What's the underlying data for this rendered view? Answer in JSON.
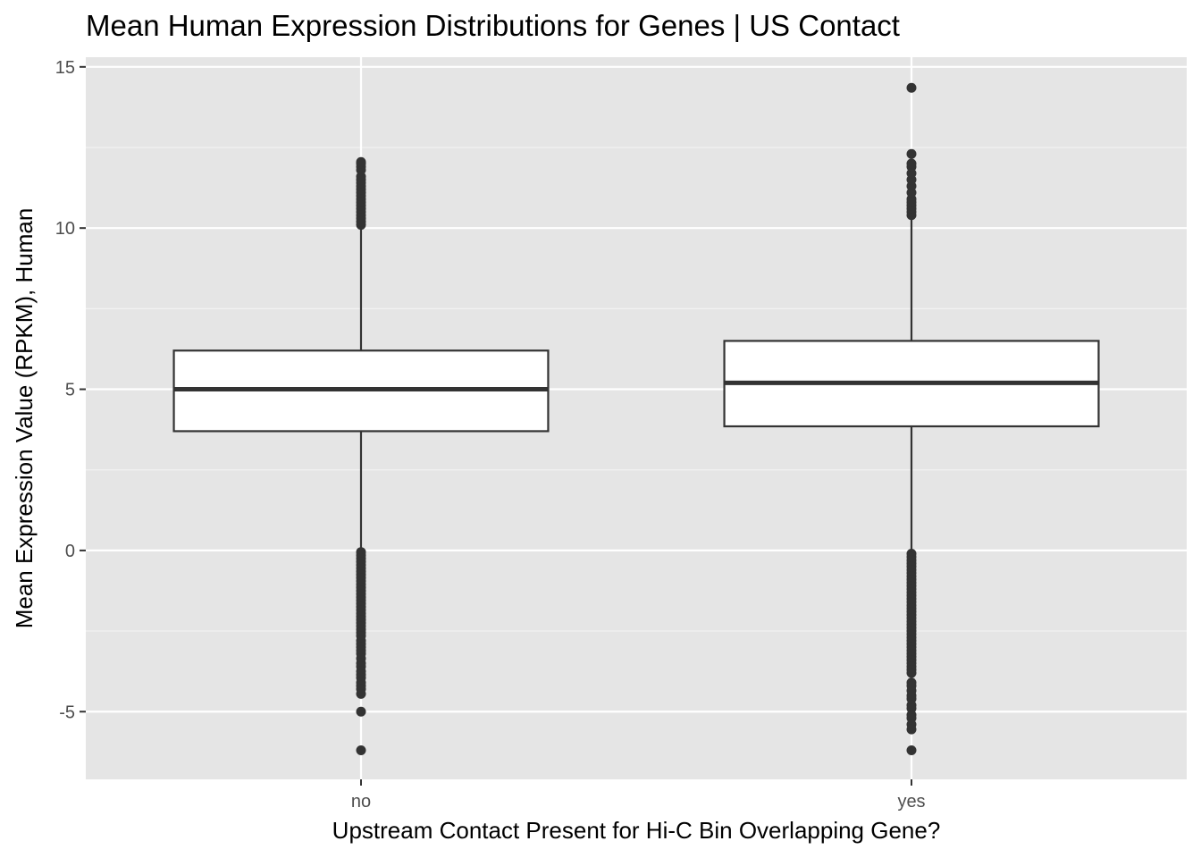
{
  "chart_data": {
    "type": "boxplot",
    "title": "Mean Human Expression Distributions for Genes | US Contact",
    "xlabel": "Upstream Contact Present for Hi-C Bin Overlapping Gene?",
    "ylabel": "Mean Expression Value (RPKM), Human",
    "categories": [
      "no",
      "yes"
    ],
    "ylim": [
      -7.1,
      15.3
    ],
    "yticks": [
      -5,
      0,
      5,
      10,
      15
    ],
    "ytick_labels": [
      "-5",
      "0",
      "5",
      "10",
      "15"
    ],
    "grid": true,
    "background": "#e5e5e5",
    "boxes": [
      {
        "category": "no",
        "q1": 3.7,
        "median": 5.0,
        "q3": 6.2,
        "whisker_low": 0.0,
        "whisker_high": 10.0,
        "outliers": [
          10.1,
          10.2,
          10.3,
          10.4,
          10.5,
          10.6,
          10.7,
          10.8,
          10.9,
          11.0,
          11.1,
          11.2,
          11.3,
          11.4,
          11.5,
          11.6,
          11.8,
          11.9,
          12.0,
          12.05,
          -0.05,
          -0.15,
          -0.25,
          -0.35,
          -0.45,
          -0.55,
          -0.65,
          -0.75,
          -0.85,
          -0.95,
          -1.05,
          -1.15,
          -1.25,
          -1.35,
          -1.45,
          -1.55,
          -1.65,
          -1.75,
          -1.85,
          -1.95,
          -2.05,
          -2.15,
          -2.25,
          -2.35,
          -2.45,
          -2.55,
          -2.65,
          -2.8,
          -2.9,
          -3.0,
          -3.1,
          -3.2,
          -3.35,
          -3.5,
          -3.6,
          -3.75,
          -3.85,
          -3.95,
          -4.1,
          -4.2,
          -4.3,
          -4.45,
          -5.0,
          -6.2
        ]
      },
      {
        "category": "yes",
        "q1": 3.85,
        "median": 5.2,
        "q3": 6.5,
        "whisker_low": 0.0,
        "whisker_high": 10.3,
        "outliers": [
          10.4,
          10.5,
          10.6,
          10.7,
          10.8,
          10.9,
          11.1,
          11.3,
          11.5,
          11.7,
          11.9,
          12.0,
          12.3,
          14.35,
          -0.1,
          -0.2,
          -0.3,
          -0.4,
          -0.5,
          -0.6,
          -0.7,
          -0.8,
          -0.9,
          -1.0,
          -1.1,
          -1.2,
          -1.3,
          -1.4,
          -1.5,
          -1.6,
          -1.7,
          -1.8,
          -1.9,
          -2.0,
          -2.1,
          -2.2,
          -2.3,
          -2.4,
          -2.5,
          -2.6,
          -2.7,
          -2.8,
          -2.9,
          -3.0,
          -3.1,
          -3.2,
          -3.3,
          -3.4,
          -3.5,
          -3.6,
          -3.7,
          -3.8,
          -4.1,
          -4.2,
          -4.35,
          -4.5,
          -4.6,
          -4.8,
          -4.9,
          -5.1,
          -5.2,
          -5.4,
          -5.55,
          -6.2
        ]
      }
    ]
  }
}
